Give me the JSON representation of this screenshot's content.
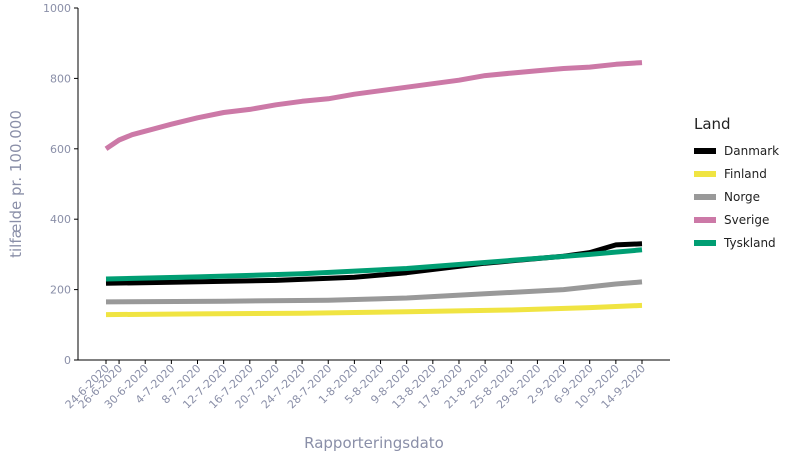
{
  "chart_data": {
    "type": "line",
    "xlabel": "Rapporteringsdato",
    "ylabel": "tilfælde pr. 100.000",
    "ylim": [
      0,
      1000
    ],
    "yticks": [
      0,
      200,
      400,
      600,
      800,
      1000
    ],
    "x_range": [
      "24-6-2020",
      "14-9-2020"
    ],
    "xticks": [
      "24-6-2020",
      "26-6-2020",
      "30-6-2020",
      "4-7-2020",
      "8-7-2020",
      "12-7-2020",
      "16-7-2020",
      "20-7-2020",
      "24-7-2020",
      "28-7-2020",
      "1-8-2020",
      "5-8-2020",
      "9-8-2020",
      "13-8-2020",
      "17-8-2020",
      "21-8-2020",
      "25-8-2020",
      "29-8-2020",
      "2-9-2020",
      "6-9-2020",
      "10-9-2020",
      "14-9-2020"
    ],
    "grid": false,
    "legend": {
      "title": "Land",
      "position": "right"
    },
    "series": [
      {
        "name": "Danmark",
        "color": "#000000",
        "points": [
          [
            "24-6-2020",
            218
          ],
          [
            "4-7-2020",
            221
          ],
          [
            "20-7-2020",
            226
          ],
          [
            "1-8-2020",
            235
          ],
          [
            "9-8-2020",
            248
          ],
          [
            "21-8-2020",
            275
          ],
          [
            "2-9-2020",
            295
          ],
          [
            "6-9-2020",
            305
          ],
          [
            "10-9-2020",
            327
          ],
          [
            "14-9-2020",
            330
          ]
        ]
      },
      {
        "name": "Finland",
        "color": "#f0e442",
        "points": [
          [
            "24-6-2020",
            129
          ],
          [
            "8-7-2020",
            131
          ],
          [
            "24-7-2020",
            133
          ],
          [
            "9-8-2020",
            137
          ],
          [
            "25-8-2020",
            142
          ],
          [
            "6-9-2020",
            149
          ],
          [
            "14-9-2020",
            155
          ]
        ]
      },
      {
        "name": "Norge",
        "color": "#999999",
        "points": [
          [
            "24-6-2020",
            165
          ],
          [
            "12-7-2020",
            167
          ],
          [
            "28-7-2020",
            170
          ],
          [
            "9-8-2020",
            176
          ],
          [
            "21-8-2020",
            188
          ],
          [
            "2-9-2020",
            200
          ],
          [
            "10-9-2020",
            216
          ],
          [
            "14-9-2020",
            222
          ]
        ]
      },
      {
        "name": "Sverige",
        "color": "#cc79a7",
        "points": [
          [
            "24-6-2020",
            600
          ],
          [
            "26-6-2020",
            625
          ],
          [
            "28-6-2020",
            640
          ],
          [
            "30-6-2020",
            650
          ],
          [
            "4-7-2020",
            670
          ],
          [
            "8-7-2020",
            688
          ],
          [
            "12-7-2020",
            703
          ],
          [
            "16-7-2020",
            712
          ],
          [
            "20-7-2020",
            725
          ],
          [
            "24-7-2020",
            735
          ],
          [
            "28-7-2020",
            742
          ],
          [
            "1-8-2020",
            755
          ],
          [
            "5-8-2020",
            765
          ],
          [
            "9-8-2020",
            775
          ],
          [
            "13-8-2020",
            785
          ],
          [
            "17-8-2020",
            795
          ],
          [
            "21-8-2020",
            808
          ],
          [
            "25-8-2020",
            815
          ],
          [
            "29-8-2020",
            822
          ],
          [
            "2-9-2020",
            828
          ],
          [
            "6-9-2020",
            832
          ],
          [
            "10-9-2020",
            840
          ],
          [
            "14-9-2020",
            845
          ]
        ]
      },
      {
        "name": "Tyskland",
        "color": "#009e73",
        "points": [
          [
            "24-6-2020",
            230
          ],
          [
            "8-7-2020",
            236
          ],
          [
            "24-7-2020",
            245
          ],
          [
            "9-8-2020",
            260
          ],
          [
            "25-8-2020",
            283
          ],
          [
            "6-9-2020",
            300
          ],
          [
            "14-9-2020",
            313
          ]
        ]
      }
    ]
  }
}
